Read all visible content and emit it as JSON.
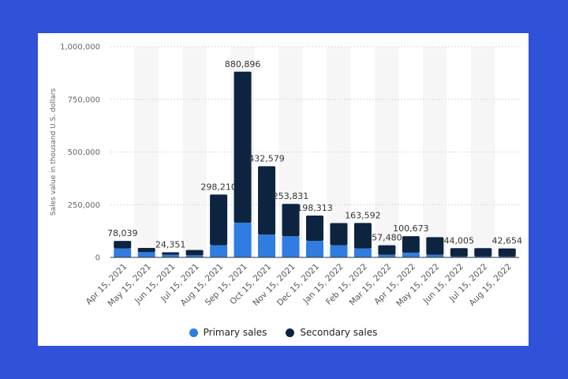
{
  "chart_data": {
    "type": "bar",
    "stacked": true,
    "title": "",
    "xlabel": "",
    "ylabel": "Sales value in thousand U.S. dollars",
    "ylim": [
      0,
      1000000
    ],
    "yticks": [
      0,
      250000,
      500000,
      750000,
      1000000
    ],
    "ytick_labels": [
      "0",
      "250,000",
      "500,000",
      "750,000",
      "1,000,000"
    ],
    "grid": true,
    "legend_position": "bottom",
    "categories": [
      "Apr 15, 2021",
      "May 15, 2021",
      "Jun 15, 2021",
      "Jul 15, 2021",
      "Aug 15, 2021",
      "Sep 15, 2021",
      "Oct 15, 2021",
      "Nov 15, 2021",
      "Dec 15, 2021",
      "Jan 15, 2022",
      "Feb 15, 2022",
      "Mar 15, 2022",
      "Apr 15, 2022",
      "May 15, 2022",
      "Jun 15, 2022",
      "Jul 15, 2022",
      "Aug 15, 2022"
    ],
    "series": [
      {
        "name": "Primary sales",
        "color": "#2f7de1",
        "values": [
          42000,
          25000,
          12000,
          10000,
          58000,
          165000,
          108000,
          100000,
          78000,
          58000,
          42000,
          12000,
          22000,
          12000,
          4000,
          4000,
          4000
        ]
      },
      {
        "name": "Secondary sales",
        "color": "#0d2440",
        "values": [
          36039,
          20000,
          12351,
          25000,
          240210,
          715896,
          324579,
          153831,
          120313,
          105000,
          121592,
          45480,
          78673,
          84000,
          40005,
          40000,
          38654
        ]
      }
    ],
    "totals": [
      78039,
      45000,
      24351,
      35000,
      298210,
      880896,
      432579,
      253831,
      198313,
      163000,
      163592,
      57480,
      100673,
      96000,
      44005,
      44000,
      42654
    ],
    "data_labels": [
      "78,039",
      "",
      "24,351",
      "",
      "298,210",
      "880,896",
      "432,579",
      "253,831",
      "198,313",
      "",
      "163,592",
      "57,480",
      "100,673",
      "",
      "44,005",
      "",
      "42,654"
    ]
  }
}
